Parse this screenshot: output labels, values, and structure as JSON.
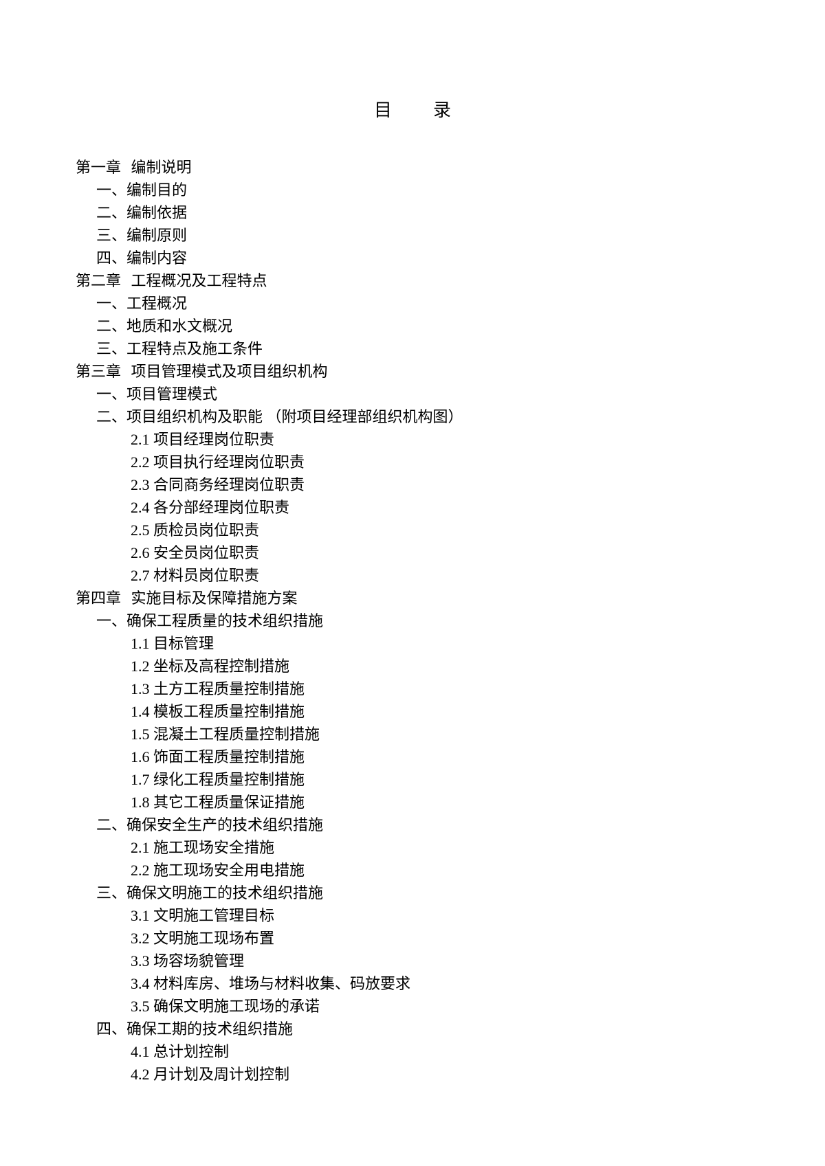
{
  "title": "目录",
  "chapters": [
    {
      "label": "第一章",
      "title": "编制说明",
      "sections": [
        {
          "label": "一、",
          "title": "编制目的"
        },
        {
          "label": "二、",
          "title": "编制依据"
        },
        {
          "label": "三、",
          "title": "编制原则"
        },
        {
          "label": "四、",
          "title": "编制内容"
        }
      ]
    },
    {
      "label": "第二章",
      "title": "工程概况及工程特点",
      "sections": [
        {
          "label": "一、",
          "title": "工程概况"
        },
        {
          "label": "二、",
          "title": "地质和水文概况"
        },
        {
          "label": "三、",
          "title": "工程特点及施工条件"
        }
      ]
    },
    {
      "label": "第三章",
      "title": "项目管理模式及项目组织机构",
      "sections": [
        {
          "label": "一、",
          "title": "项目管理模式"
        },
        {
          "label": "二、",
          "title": "项目组织机构及职能 （附项目经理部组织机构图）",
          "subsections": [
            {
              "num": "2.1",
              "title": "项目经理岗位职责"
            },
            {
              "num": "2.2",
              "title": "项目执行经理岗位职责"
            },
            {
              "num": "2.3",
              "title": "合同商务经理岗位职责"
            },
            {
              "num": "2.4",
              "title": "各分部经理岗位职责"
            },
            {
              "num": "2.5",
              "title": "质检员岗位职责"
            },
            {
              "num": "2.6",
              "title": "安全员岗位职责"
            },
            {
              "num": "2.7",
              "title": "材料员岗位职责"
            }
          ]
        }
      ]
    },
    {
      "label": "第四章",
      "title": "实施目标及保障措施方案",
      "sections": [
        {
          "label": "一、",
          "title": "确保工程质量的技术组织措施",
          "subsections": [
            {
              "num": "1.1",
              "title": "目标管理"
            },
            {
              "num": "1.2",
              "title": "坐标及高程控制措施"
            },
            {
              "num": "1.3",
              "title": "土方工程质量控制措施"
            },
            {
              "num": "1.4",
              "title": "模板工程质量控制措施"
            },
            {
              "num": "1.5",
              "title": "混凝土工程质量控制措施"
            },
            {
              "num": "1.6",
              "title": "饰面工程质量控制措施"
            },
            {
              "num": "1.7",
              "title": "绿化工程质量控制措施"
            },
            {
              "num": "1.8",
              "title": "其它工程质量保证措施"
            }
          ]
        },
        {
          "label": "二、",
          "title": "确保安全生产的技术组织措施",
          "subsections": [
            {
              "num": "2.1",
              "title": "施工现场安全措施"
            },
            {
              "num": "2.2",
              "title": "施工现场安全用电措施"
            }
          ]
        },
        {
          "label": "三、",
          "title": "确保文明施工的技术组织措施",
          "subsections": [
            {
              "num": "3.1",
              "title": "文明施工管理目标"
            },
            {
              "num": "3.2",
              "title": "文明施工现场布置"
            },
            {
              "num": "3.3",
              "title": "场容场貌管理"
            },
            {
              "num": "3.4",
              "title": "材料库房、堆场与材料收集、码放要求"
            },
            {
              "num": "3.5",
              "title": "确保文明施工现场的承诺"
            }
          ]
        },
        {
          "label": "四、",
          "title": "确保工期的技术组织措施",
          "subsections": [
            {
              "num": "4.1",
              "title": "总计划控制"
            },
            {
              "num": "4.2",
              "title": "月计划及周计划控制"
            }
          ]
        }
      ]
    }
  ]
}
